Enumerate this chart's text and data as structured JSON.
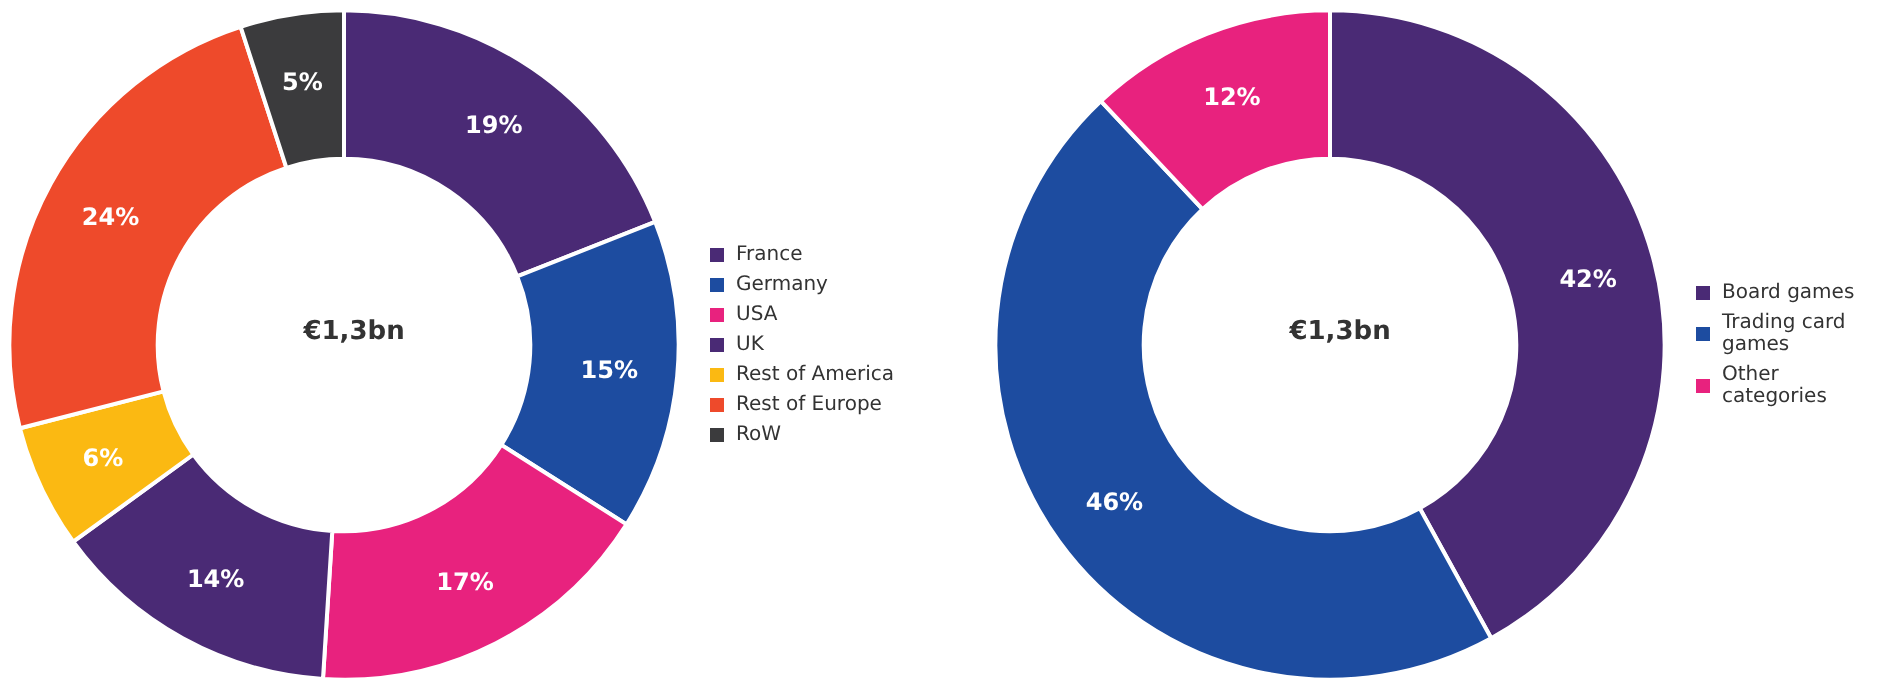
{
  "chart_data": [
    {
      "type": "donut",
      "title": "€1,3bn",
      "categories": [
        "France",
        "Germany",
        "USA",
        "UK",
        "Rest of America",
        "Rest of Europe",
        "RoW"
      ],
      "values": [
        19,
        15,
        17,
        14,
        6,
        24,
        5
      ],
      "colors": [
        "#4a2a75",
        "#1d4ca0",
        "#e8227e",
        "#4a2a75",
        "#fbb912",
        "#ee4a2b",
        "#3b3b3d"
      ],
      "value_labels": [
        "19%",
        "15%",
        "17%",
        "14%",
        "6%",
        "24%",
        "5%"
      ],
      "legend": "right"
    },
    {
      "type": "donut",
      "title": "€1,3bn",
      "categories": [
        "Board games",
        "Trading card games",
        "Other categories"
      ],
      "values": [
        42,
        46,
        12
      ],
      "colors": [
        "#4a2a75",
        "#1d4ca0",
        "#e8227e"
      ],
      "value_labels": [
        "42%",
        "46%",
        "12%"
      ],
      "legend": "right"
    }
  ]
}
